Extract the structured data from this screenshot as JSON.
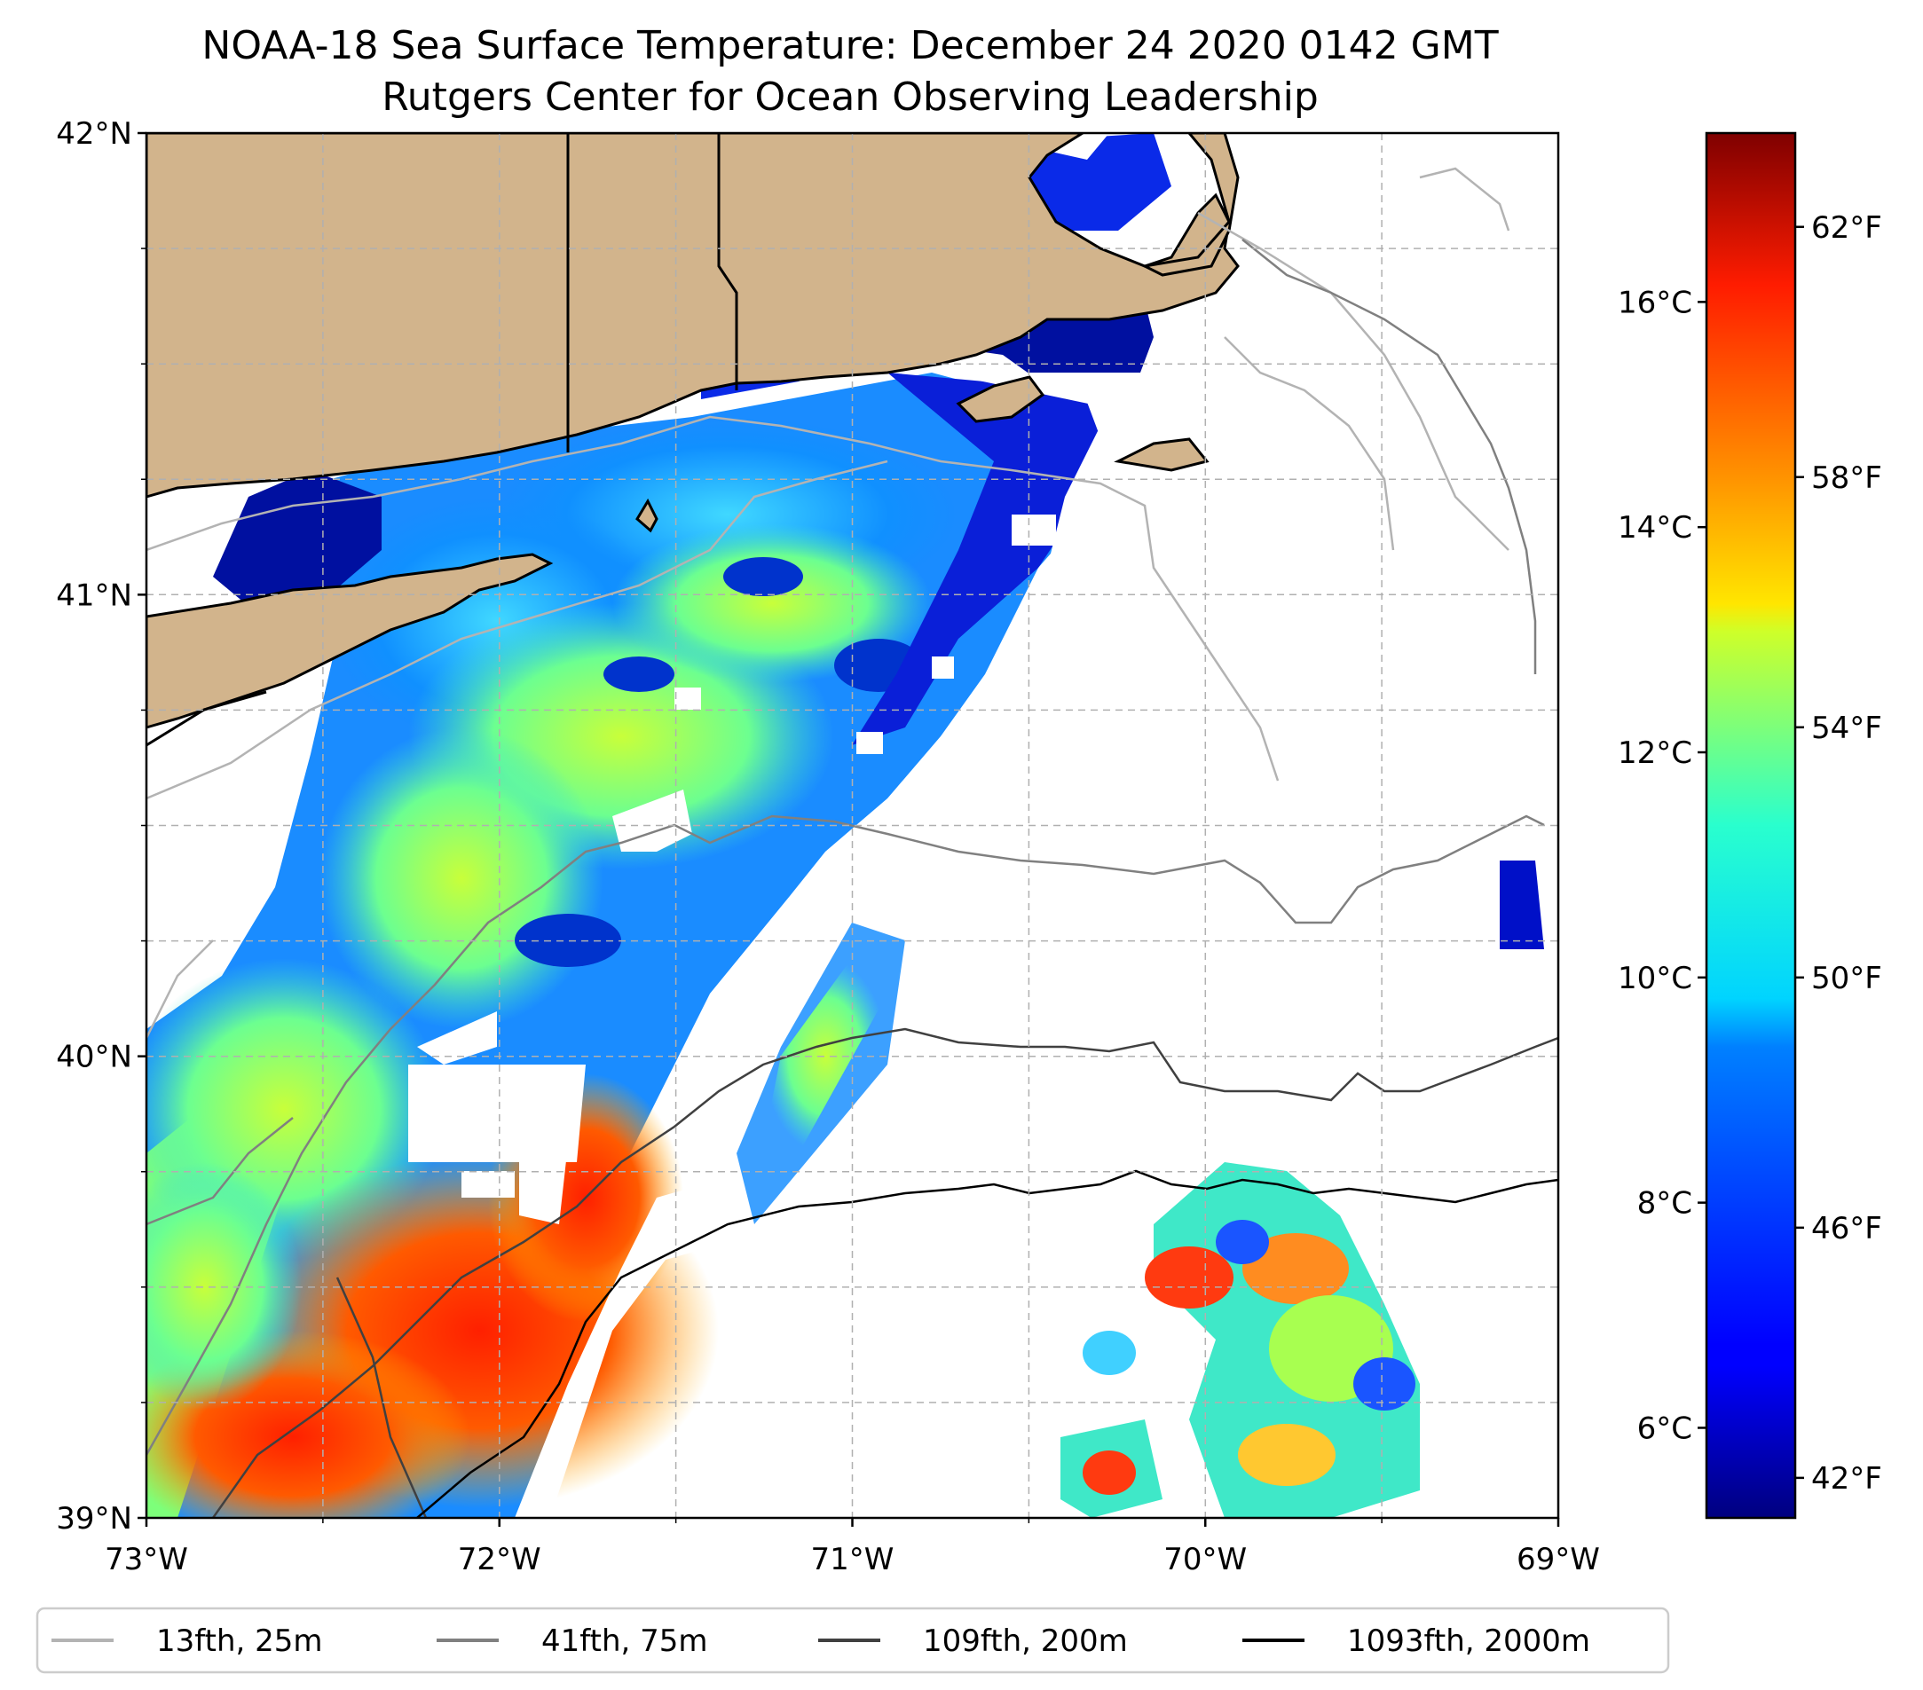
{
  "title": "NOAA-18 Sea Surface Temperature: December 24 2020 0142 GMT",
  "subtitle": "Rutgers Center for Ocean Observing Leadership",
  "map": {
    "lon_range": [
      -73,
      -69
    ],
    "lat_range": [
      39,
      42
    ],
    "gridlines": true,
    "x_ticks": [
      "73°W",
      "72°W",
      "71°W",
      "70°W",
      "69°W"
    ],
    "y_ticks": [
      "42°N",
      "41°N",
      "40°N",
      "39°N"
    ],
    "land_color": "#d2b48c"
  },
  "colorbar": {
    "colormap": "jet",
    "celsius_range": [
      5.2,
      17.5
    ],
    "celsius_ticks": [
      "16°C",
      "14°C",
      "12°C",
      "10°C",
      "8°C",
      "6°C"
    ],
    "fahrenheit_ticks": [
      "62°F",
      "58°F",
      "54°F",
      "50°F",
      "46°F",
      "42°F"
    ]
  },
  "legend": {
    "placement": "bottom",
    "items": [
      {
        "label": "13fth, 25m",
        "color": "#b3b3b3"
      },
      {
        "label": "41fth, 75m",
        "color": "#808080"
      },
      {
        "label": "109fth, 200m",
        "color": "#404040"
      },
      {
        "label": "1093fth, 2000m",
        "color": "#000000"
      }
    ]
  }
}
